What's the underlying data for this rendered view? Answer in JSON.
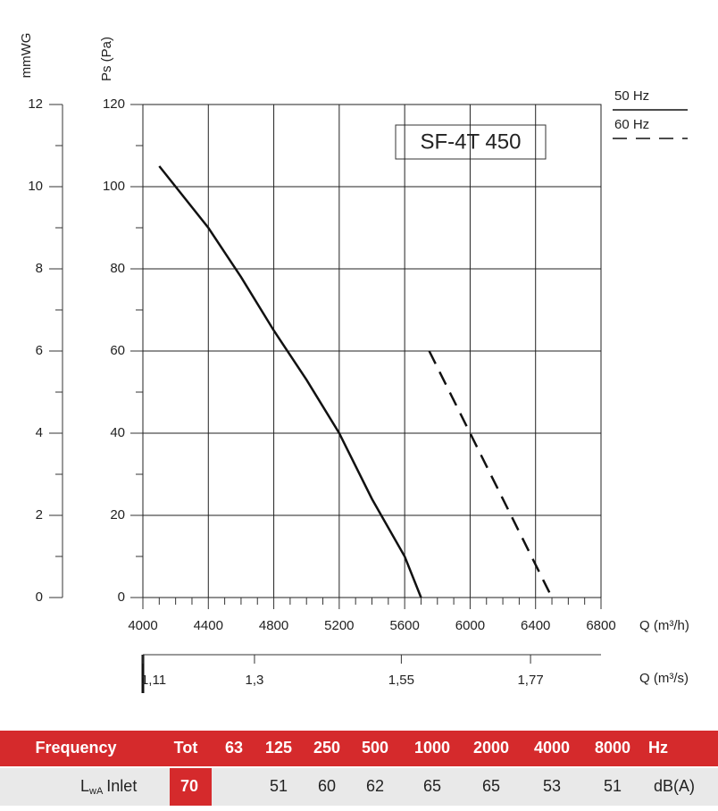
{
  "chart_data": {
    "type": "line",
    "title": "SF-4T 450",
    "ylabel": "Ps (Pa)",
    "y2label": "mmWG",
    "xlabel": "Q (m³/h)",
    "x2label": "Q (m³/s)",
    "xlim": [
      4000,
      6800
    ],
    "xticks": [
      4000,
      4400,
      4800,
      5200,
      5600,
      6000,
      6400,
      6800
    ],
    "ylim": [
      0,
      120
    ],
    "yticks": [
      0,
      20,
      40,
      60,
      80,
      100,
      120
    ],
    "y2lim": [
      0,
      12
    ],
    "y2ticks": [
      0,
      2,
      4,
      6,
      8,
      10,
      12
    ],
    "x2lim": [
      1.11,
      1.89
    ],
    "x2ticks": [
      {
        "value": 1.11,
        "label": "1,11"
      },
      {
        "value": 1.3,
        "label": "1,3"
      },
      {
        "value": 1.55,
        "label": "1,55"
      },
      {
        "value": 1.77,
        "label": "1,77"
      }
    ],
    "grid": true,
    "legend": "top-right",
    "series": [
      {
        "name": "50 Hz",
        "color": "#111111",
        "dash": "solid",
        "x": [
          4100,
          4400,
          4600,
          4800,
          5000,
          5200,
          5400,
          5600,
          5700
        ],
        "values": [
          105,
          90,
          78,
          65,
          53,
          40,
          24,
          10,
          0
        ]
      },
      {
        "name": "60 Hz",
        "color": "#111111",
        "dash": "dashed",
        "x": [
          5750,
          6000,
          6250,
          6500
        ],
        "values": [
          60,
          40,
          20,
          0
        ]
      }
    ]
  },
  "table": {
    "header": [
      "Frequency",
      "Tot",
      "63",
      "125",
      "250",
      "500",
      "1000",
      "2000",
      "4000",
      "8000",
      "Hz"
    ],
    "row_label": {
      "main": "L",
      "sub": "wA",
      "rest": "Inlet"
    },
    "row": [
      70,
      null,
      51,
      60,
      62,
      65,
      65,
      53,
      51
    ],
    "unit": "dB(A)"
  }
}
